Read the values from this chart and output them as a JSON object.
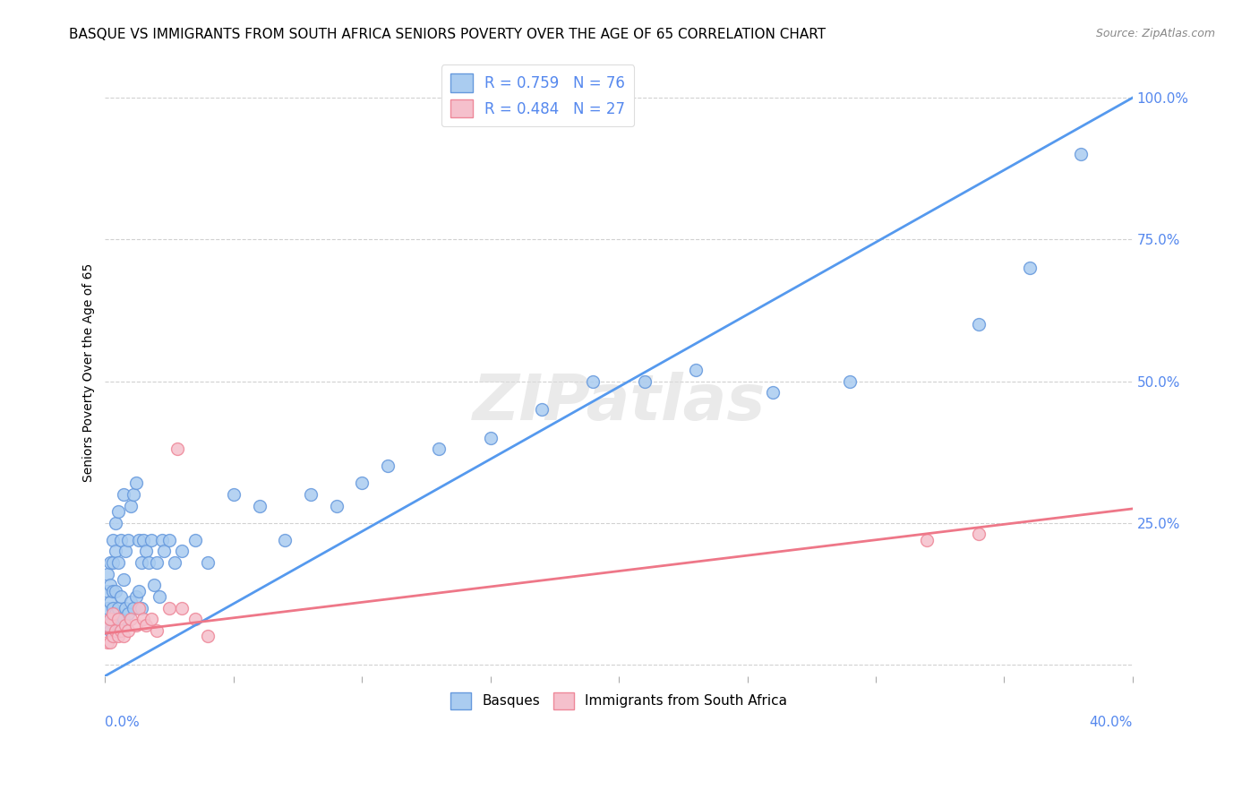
{
  "title": "BASQUE VS IMMIGRANTS FROM SOUTH AFRICA SENIORS POVERTY OVER THE AGE OF 65 CORRELATION CHART",
  "source": "Source: ZipAtlas.com",
  "ylabel": "Seniors Poverty Over the Age of 65",
  "ytick_labels": [
    "",
    "25.0%",
    "50.0%",
    "75.0%",
    "100.0%"
  ],
  "ytick_positions": [
    0.0,
    0.25,
    0.5,
    0.75,
    1.0
  ],
  "xlim": [
    0.0,
    0.4
  ],
  "ylim": [
    -0.02,
    1.05
  ],
  "watermark": "ZIPatlas",
  "basque_color": "#aaccf0",
  "basque_edge_color": "#6699dd",
  "basque_line_color": "#5599ee",
  "immigrant_color": "#f5c0cc",
  "immigrant_edge_color": "#ee8899",
  "immigrant_line_color": "#ee7788",
  "legend_R1": "R = 0.759",
  "legend_N1": "N = 76",
  "legend_R2": "R = 0.484",
  "legend_N2": "N = 27",
  "basque_line_x0": 0.0,
  "basque_line_y0": -0.02,
  "basque_line_x1": 0.4,
  "basque_line_y1": 1.0,
  "immigrant_line_x0": 0.0,
  "immigrant_line_y0": 0.055,
  "immigrant_line_x1": 0.4,
  "immigrant_line_y1": 0.275,
  "basque_x": [
    0.001,
    0.001,
    0.001,
    0.001,
    0.002,
    0.002,
    0.002,
    0.002,
    0.002,
    0.003,
    0.003,
    0.003,
    0.003,
    0.003,
    0.003,
    0.004,
    0.004,
    0.004,
    0.004,
    0.004,
    0.005,
    0.005,
    0.005,
    0.005,
    0.006,
    0.006,
    0.006,
    0.007,
    0.007,
    0.007,
    0.008,
    0.008,
    0.009,
    0.009,
    0.01,
    0.01,
    0.011,
    0.011,
    0.012,
    0.012,
    0.013,
    0.013,
    0.014,
    0.014,
    0.015,
    0.016,
    0.017,
    0.018,
    0.019,
    0.02,
    0.021,
    0.022,
    0.023,
    0.025,
    0.027,
    0.03,
    0.035,
    0.04,
    0.05,
    0.06,
    0.07,
    0.08,
    0.09,
    0.1,
    0.11,
    0.13,
    0.15,
    0.17,
    0.19,
    0.21,
    0.23,
    0.26,
    0.29,
    0.34,
    0.36,
    0.38
  ],
  "basque_y": [
    0.07,
    0.1,
    0.13,
    0.16,
    0.06,
    0.08,
    0.11,
    0.14,
    0.18,
    0.05,
    0.08,
    0.1,
    0.13,
    0.18,
    0.22,
    0.06,
    0.09,
    0.13,
    0.2,
    0.25,
    0.07,
    0.1,
    0.18,
    0.27,
    0.08,
    0.12,
    0.22,
    0.08,
    0.15,
    0.3,
    0.1,
    0.2,
    0.09,
    0.22,
    0.11,
    0.28,
    0.1,
    0.3,
    0.12,
    0.32,
    0.13,
    0.22,
    0.1,
    0.18,
    0.22,
    0.2,
    0.18,
    0.22,
    0.14,
    0.18,
    0.12,
    0.22,
    0.2,
    0.22,
    0.18,
    0.2,
    0.22,
    0.18,
    0.3,
    0.28,
    0.22,
    0.3,
    0.28,
    0.32,
    0.35,
    0.38,
    0.4,
    0.45,
    0.5,
    0.5,
    0.52,
    0.48,
    0.5,
    0.6,
    0.7,
    0.9
  ],
  "immigrant_x": [
    0.001,
    0.001,
    0.002,
    0.002,
    0.003,
    0.003,
    0.004,
    0.005,
    0.005,
    0.006,
    0.007,
    0.008,
    0.009,
    0.01,
    0.012,
    0.013,
    0.015,
    0.016,
    0.018,
    0.02,
    0.025,
    0.028,
    0.03,
    0.035,
    0.04,
    0.32,
    0.34
  ],
  "immigrant_y": [
    0.04,
    0.07,
    0.04,
    0.08,
    0.05,
    0.09,
    0.06,
    0.05,
    0.08,
    0.06,
    0.05,
    0.07,
    0.06,
    0.08,
    0.07,
    0.1,
    0.08,
    0.07,
    0.08,
    0.06,
    0.1,
    0.38,
    0.1,
    0.08,
    0.05,
    0.22,
    0.23
  ],
  "title_fontsize": 11,
  "tick_label_color": "#5588ee",
  "grid_color": "#cccccc",
  "background_color": "#ffffff"
}
